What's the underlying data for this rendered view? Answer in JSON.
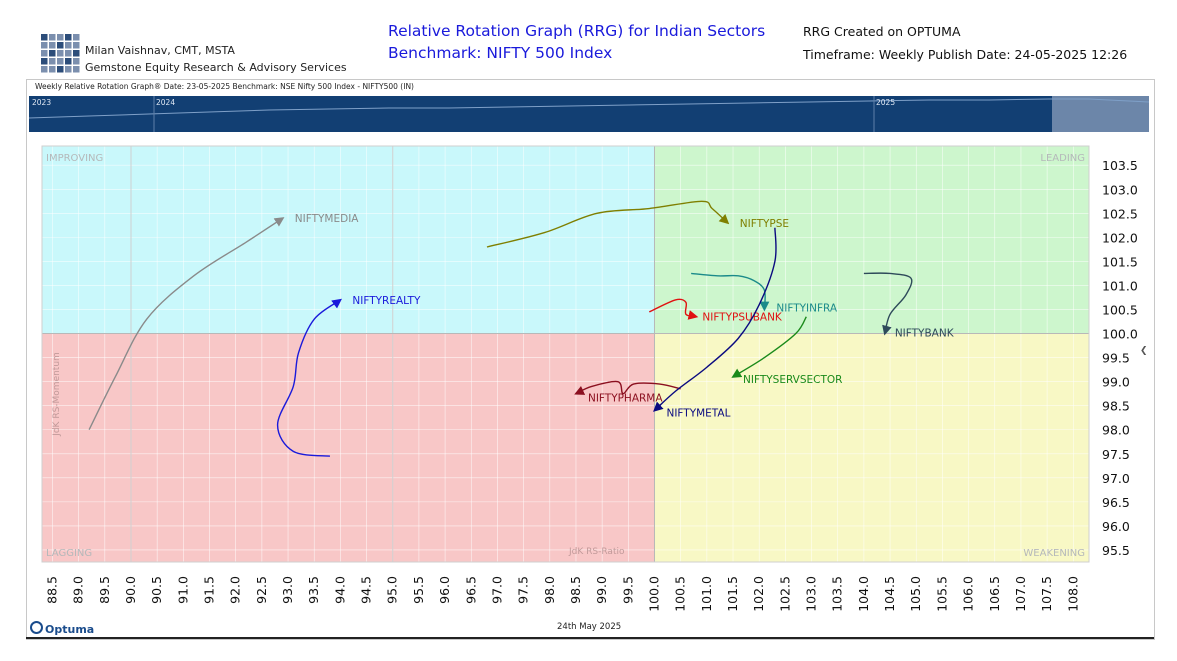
{
  "header": {
    "author": "Milan Vaishnav, CMT, MSTA",
    "company": "Gemstone Equity Research & Advisory Services",
    "title_line1": "Relative Rotation Graph (RRG) for Indian Sectors",
    "title_line2": "Benchmark: NIFTY 500 Index",
    "created_on": "RRG Created on OPTUMA",
    "timeframe": "Timeframe: Weekly  Publish Date: 24-05-2025 12:26"
  },
  "subheader": {
    "info": "Weekly Relative Rotation Graph®   Date: 23-05-2025  Benchmark: NSE Nifty 500 Index - NIFTY500 (IN)"
  },
  "timeline": {
    "years": [
      "2023",
      "2024",
      "2025"
    ]
  },
  "footer": {
    "brand": "Optuma",
    "date": "24th May 2025"
  },
  "colors": {
    "improving": "#c9f8fb",
    "leading": "#cdf6cd",
    "lagging": "#f8c7c7",
    "weakening": "#f8f8c5",
    "timeline": "#123f73"
  },
  "chart_data": {
    "type": "scatter",
    "xlabel": "JdK RS-Ratio",
    "ylabel": "JdK RS-Momentum",
    "xlim": [
      88.3,
      108.3
    ],
    "ylim": [
      95.25,
      103.9
    ],
    "center": [
      100.0,
      100.0
    ],
    "x_ticks": [
      88.5,
      89.0,
      89.5,
      90.0,
      90.5,
      91.0,
      91.5,
      92.0,
      92.5,
      93.0,
      93.5,
      94.0,
      94.5,
      95.0,
      95.5,
      96.0,
      96.5,
      97.0,
      97.5,
      98.0,
      98.5,
      99.0,
      99.5,
      100.0,
      100.5,
      101.0,
      101.5,
      102.0,
      102.5,
      103.0,
      103.5,
      104.0,
      104.5,
      105.0,
      105.5,
      106.0,
      106.5,
      107.0,
      107.5,
      108.0
    ],
    "x_tick_labels": [
      "88.5",
      "89.0",
      "89.5",
      "90.0",
      "90.5",
      "91.0",
      "91.5",
      "92.0",
      "92.5",
      "93.0",
      "93.5",
      "94.0",
      "94.5",
      "95.0",
      "95.5",
      "96.0",
      "96.5",
      "97.0",
      "97.5",
      "98.0",
      "98.5",
      "99.0",
      "99.5",
      "100.0",
      "100.5",
      "101.0",
      "101.5",
      "102.0",
      "102.5",
      "103.0",
      "103.5",
      "104.0",
      "104.5",
      "105.0",
      "105.5",
      "106.0",
      "106.5",
      "107.0",
      "107.5",
      "108.0"
    ],
    "y_ticks": [
      95.5,
      96.0,
      96.5,
      97.0,
      97.5,
      98.0,
      98.5,
      99.0,
      99.5,
      100.0,
      100.5,
      101.0,
      101.5,
      102.0,
      102.5,
      103.0,
      103.5
    ],
    "y_tick_labels": [
      "95.5",
      "96.0",
      "96.5",
      "97.0",
      "97.5",
      "98.0",
      "98.5",
      "99.0",
      "99.5",
      "100.0",
      "100.5",
      "101.0",
      "101.5",
      "102.0",
      "102.5",
      "103.0",
      "103.5"
    ],
    "quadrants": [
      "IMPROVING",
      "LEADING",
      "LAGGING",
      "WEAKENING"
    ],
    "series": [
      {
        "name": "NIFTYMEDIA",
        "color": "#8a8a8a",
        "points": [
          [
            89.2,
            98.0
          ],
          [
            89.7,
            99.1
          ],
          [
            90.3,
            100.3
          ],
          [
            91.2,
            101.2
          ],
          [
            92.2,
            101.9
          ],
          [
            92.9,
            102.4
          ]
        ]
      },
      {
        "name": "NIFTYREALTY",
        "color": "#1a1adb",
        "points": [
          [
            93.8,
            97.45
          ],
          [
            93.1,
            97.55
          ],
          [
            92.8,
            98.1
          ],
          [
            93.1,
            98.9
          ],
          [
            93.2,
            99.6
          ],
          [
            93.5,
            100.3
          ],
          [
            94.0,
            100.7
          ]
        ]
      },
      {
        "name": "NIFTYPSE",
        "color": "#7f7f00",
        "points": [
          [
            96.8,
            101.8
          ],
          [
            97.9,
            102.1
          ],
          [
            98.9,
            102.5
          ],
          [
            99.9,
            102.6
          ],
          [
            100.9,
            102.75
          ],
          [
            101.1,
            102.6
          ],
          [
            101.4,
            102.3
          ]
        ]
      },
      {
        "name": "NIFTYINFRA",
        "color": "#1b8a8a",
        "points": [
          [
            100.7,
            101.25
          ],
          [
            101.2,
            101.2
          ],
          [
            101.6,
            101.2
          ],
          [
            101.9,
            101.1
          ],
          [
            102.1,
            100.9
          ],
          [
            102.1,
            100.5
          ]
        ]
      },
      {
        "name": "NIFTYPSUBANK",
        "color": "#e01010",
        "points": [
          [
            99.9,
            100.45
          ],
          [
            100.4,
            100.7
          ],
          [
            100.6,
            100.65
          ],
          [
            100.6,
            100.4
          ],
          [
            100.8,
            100.35
          ]
        ]
      },
      {
        "name": "NIFTYBANK",
        "color": "#2e4a5a",
        "points": [
          [
            104.0,
            101.25
          ],
          [
            104.5,
            101.25
          ],
          [
            104.9,
            101.15
          ],
          [
            104.8,
            100.8
          ],
          [
            104.5,
            100.4
          ],
          [
            104.4,
            100.0
          ]
        ]
      },
      {
        "name": "NIFTYSERVSECTOR",
        "color": "#1a8a1a",
        "points": [
          [
            102.9,
            100.35
          ],
          [
            102.7,
            100.0
          ],
          [
            102.1,
            99.5
          ],
          [
            101.5,
            99.1
          ]
        ]
      },
      {
        "name": "NIFTYPHARMA",
        "color": "#8b1020",
        "points": [
          [
            100.5,
            98.85
          ],
          [
            100.1,
            98.95
          ],
          [
            99.6,
            98.95
          ],
          [
            99.4,
            98.75
          ],
          [
            99.3,
            99.0
          ],
          [
            98.8,
            98.9
          ],
          [
            98.5,
            98.75
          ]
        ]
      },
      {
        "name": "NIFTYMETAL",
        "color": "#0a0a80",
        "points": [
          [
            102.3,
            102.2
          ],
          [
            102.3,
            101.5
          ],
          [
            102.0,
            100.6
          ],
          [
            101.6,
            99.9
          ],
          [
            101.0,
            99.3
          ],
          [
            100.4,
            98.8
          ],
          [
            100.0,
            98.4
          ]
        ]
      }
    ]
  }
}
